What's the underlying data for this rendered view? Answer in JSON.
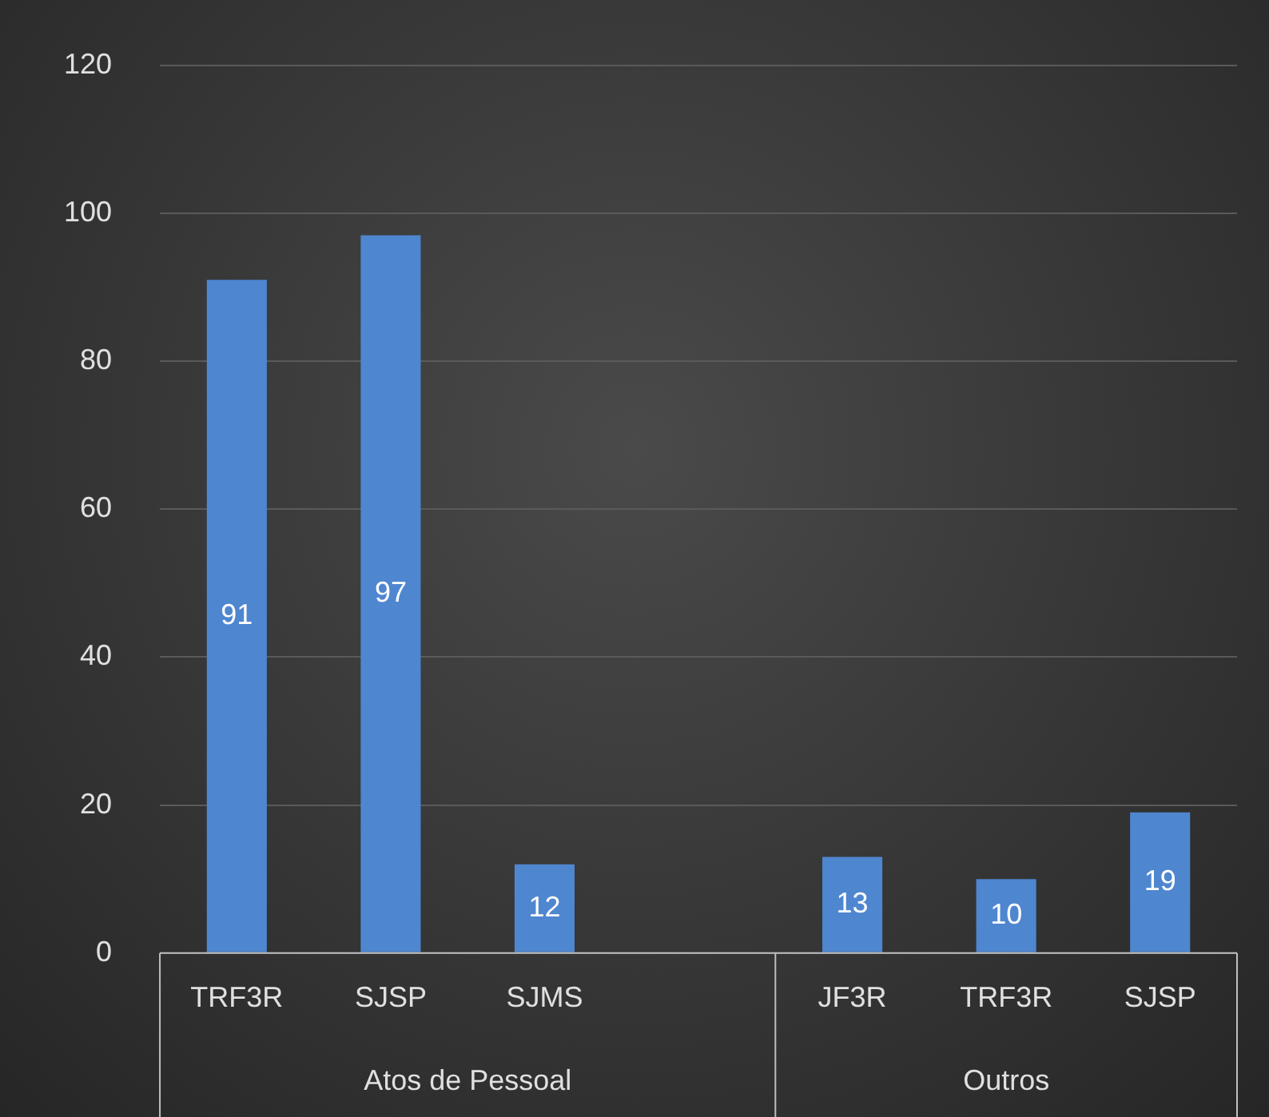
{
  "chart_data": {
    "type": "bar",
    "categories": [
      "TRF3R",
      "SJSP",
      "SJMS",
      null,
      "JF3R",
      "TRF3R",
      "SJSP"
    ],
    "values": [
      91,
      97,
      12,
      null,
      13,
      10,
      19
    ],
    "color": "#4f86d0",
    "ylim": [
      0,
      120
    ],
    "yticks": [
      0,
      20,
      40,
      60,
      80,
      100,
      120
    ],
    "grid": "y",
    "legend": false,
    "data_labels": true,
    "annotations": [
      "Atos de Pessoal",
      "Outros"
    ]
  }
}
